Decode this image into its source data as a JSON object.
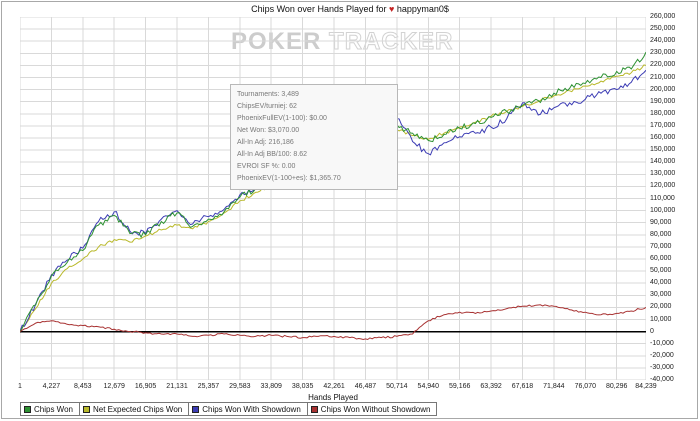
{
  "header": {
    "title_prefix": "Chips Won over Hands Played for",
    "heart": "♥",
    "player": "happyman0$"
  },
  "watermark": {
    "word1": "POKER",
    "word2": "TRACKER"
  },
  "stats_box": {
    "lines": [
      "Tournaments: 3,489",
      "ChipsEV/turniej: 62",
      "PhoenixFullEV(1-100): $0.00",
      "Net Won: $3,070.00",
      "All-In Adj: 216,186",
      "All-In Adj BB/100: 8.62",
      "EVROI SF %: 0.00",
      "PhoenixEV(1-100+es): $1,365.70"
    ]
  },
  "chart_data": {
    "type": "line",
    "title": "Chips Won over Hands Played for happyman0$",
    "xlabel": "Hands Played",
    "ylabel": "",
    "grid": true,
    "legend_position": "bottom",
    "xlim": [
      1,
      84239
    ],
    "ylim": [
      -40000,
      260000
    ],
    "y_tick_step": 10000,
    "x_ticks": [
      1,
      4227,
      8453,
      12679,
      16905,
      21131,
      25357,
      29583,
      33809,
      38035,
      42261,
      46487,
      50714,
      54940,
      59166,
      63392,
      67618,
      71844,
      76070,
      80296,
      84239
    ],
    "x": [
      1,
      2114,
      4227,
      6340,
      8453,
      10566,
      12679,
      14792,
      16905,
      19018,
      21131,
      23244,
      25357,
      27470,
      29583,
      31696,
      33809,
      35922,
      38035,
      40148,
      42261,
      44374,
      46487,
      48600,
      50714,
      52827,
      54940,
      57053,
      59166,
      61279,
      63392,
      65505,
      67618,
      69731,
      71844,
      73957,
      76070,
      78183,
      80296,
      82267,
      84239
    ],
    "series": [
      {
        "name": "Chips Won",
        "color": "#2d9132",
        "values": [
          0,
          22000,
          46000,
          57000,
          67000,
          88000,
          96000,
          81000,
          80000,
          91000,
          98000,
          87000,
          93000,
          99000,
          111000,
          118000,
          124000,
          131000,
          138000,
          145000,
          151000,
          154000,
          156000,
          163000,
          171000,
          164000,
          158000,
          163000,
          168000,
          172000,
          177000,
          182000,
          187000,
          191000,
          197000,
          201000,
          205000,
          210000,
          215000,
          217000,
          231000
        ]
      },
      {
        "name": "Net Expected Chips Won",
        "color": "#b9b92b",
        "values": [
          0,
          19000,
          40000,
          52000,
          60000,
          70000,
          76000,
          74000,
          79000,
          84000,
          88000,
          85000,
          91000,
          98000,
          108000,
          115000,
          121000,
          129000,
          136000,
          143000,
          148000,
          152000,
          155000,
          161000,
          167000,
          162000,
          159000,
          164000,
          169000,
          173000,
          178000,
          182000,
          186000,
          190000,
          195000,
          199000,
          203000,
          207000,
          211000,
          214000,
          220000
        ]
      },
      {
        "name": "Chips Won With Showdown",
        "color": "#3c3cb4",
        "values": [
          0,
          23000,
          47000,
          59000,
          69000,
          91000,
          99000,
          83000,
          81000,
          93000,
          100000,
          89000,
          95000,
          101000,
          113000,
          120000,
          126000,
          133000,
          140000,
          148000,
          154000,
          157000,
          159000,
          166000,
          176000,
          157000,
          147000,
          156000,
          161000,
          164000,
          169000,
          176000,
          189000,
          179000,
          185000,
          189000,
          192000,
          197000,
          200000,
          206000,
          216000
        ]
      },
      {
        "name": "Chips Won Without Showdown",
        "color": "#a83232",
        "values": [
          0,
          7000,
          9000,
          6000,
          5000,
          4000,
          2000,
          0,
          -1000,
          -2000,
          -2000,
          -4000,
          -3000,
          -2000,
          -3000,
          -4000,
          -3000,
          -4000,
          -5000,
          -4000,
          -4000,
          -5000,
          -6000,
          -5000,
          -4000,
          -2000,
          9000,
          14000,
          16000,
          15000,
          17000,
          19000,
          21000,
          22000,
          21000,
          18000,
          16000,
          14000,
          15000,
          17000,
          20000
        ]
      }
    ]
  }
}
